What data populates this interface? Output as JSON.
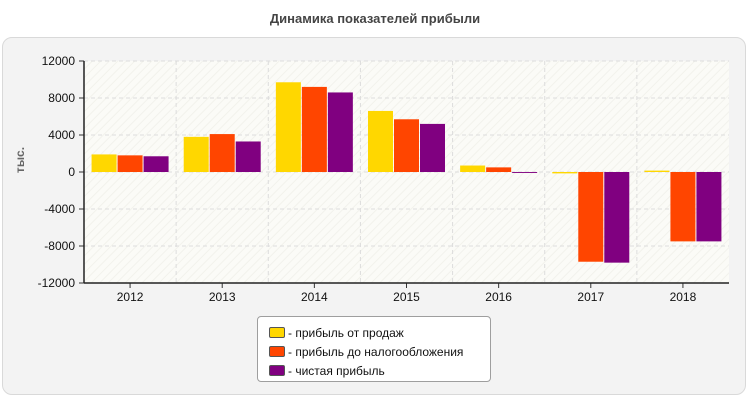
{
  "chart_data": {
    "type": "bar",
    "title": "Динамика показателей прибыли",
    "ylabel": "тыс.",
    "xlabel": "",
    "categories": [
      "2012",
      "2013",
      "2014",
      "2015",
      "2016",
      "2017",
      "2018"
    ],
    "ylim": [
      -12000,
      12000
    ],
    "yticks": [
      12000,
      8000,
      4000,
      0,
      -4000,
      -8000,
      -12000
    ],
    "ytick_labels": [
      "12000",
      "8000",
      "4000",
      "0",
      "-4000",
      "-8000",
      "-12000"
    ],
    "grid": true,
    "legend_position": "bottom-center",
    "series": [
      {
        "name": "- прибыль от продаж",
        "color": "#ffd700",
        "values": [
          1900,
          3800,
          9700,
          6600,
          700,
          -150,
          150
        ]
      },
      {
        "name": "- прибыль до налогообложения",
        "color": "#ff4500",
        "values": [
          1800,
          4100,
          9200,
          5700,
          500,
          -9700,
          -7500
        ]
      },
      {
        "name": "- чистая прибыль",
        "color": "#800080",
        "values": [
          1700,
          3300,
          8600,
          5200,
          -100,
          -9800,
          -7500
        ]
      }
    ]
  }
}
